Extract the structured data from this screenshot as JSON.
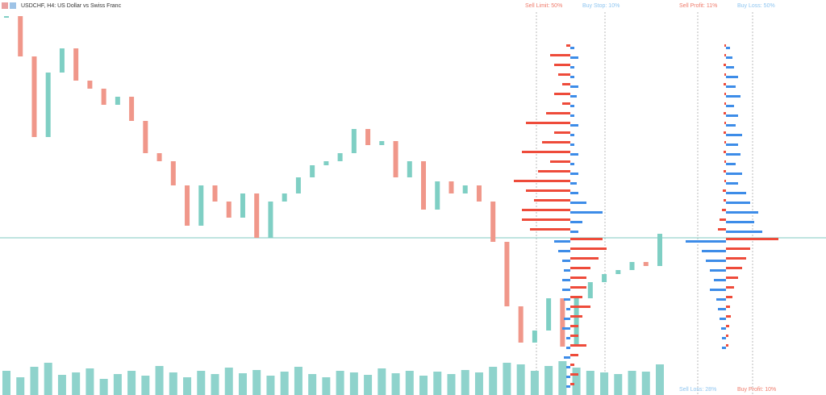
{
  "header": {
    "title": "USDCHF, H4:  US Dollar vs Swiss Franc"
  },
  "labels": {
    "sell_limit": "Sell Limit: 50%",
    "buy_stop": "Buy Stop: 10%",
    "sell_profit": "Sell Profit: 11%",
    "buy_loss": "Buy Loss: 50%",
    "sell_loss": "Sell Loss: 28%",
    "buy_profit": "Buy Profit: 10%"
  },
  "price": {
    "close": [
      470,
      420,
      320,
      400,
      430,
      390,
      380,
      360,
      370,
      340,
      300,
      290,
      260,
      210,
      260,
      240,
      220,
      250,
      195,
      240,
      250,
      270,
      285,
      290,
      300,
      330,
      310,
      315,
      270,
      290,
      230,
      265,
      250,
      260,
      240,
      190,
      110,
      65,
      80,
      120,
      60,
      120,
      140,
      150,
      155,
      165,
      160,
      200
    ]
  },
  "volume": {
    "values": [
      30,
      22,
      35,
      40,
      25,
      28,
      33,
      20,
      26,
      30,
      24,
      36,
      28,
      22,
      30,
      26,
      34,
      27,
      31,
      24,
      29,
      35,
      26,
      22,
      30,
      28,
      25,
      33,
      27,
      30,
      24,
      29,
      26,
      31,
      28,
      35,
      40,
      38,
      30,
      36,
      42,
      34,
      30,
      28,
      26,
      30,
      29,
      38
    ]
  },
  "left_book": {
    "sell": [
      5,
      25,
      20,
      15,
      10,
      20,
      10,
      30,
      55,
      20,
      35,
      60,
      25,
      40,
      70,
      55,
      45,
      60,
      60,
      50,
      40,
      45,
      35,
      25,
      20,
      20,
      15,
      25,
      15,
      10,
      10,
      20,
      10,
      5,
      10,
      5
    ],
    "buy": [
      5,
      10,
      5,
      5,
      10,
      8,
      5,
      5,
      10,
      5,
      5,
      10,
      5,
      10,
      8,
      10,
      20,
      40,
      15,
      10,
      20,
      15,
      10,
      8,
      10,
      10,
      8,
      5,
      8,
      10,
      5,
      5,
      8,
      5,
      5,
      5
    ]
  },
  "right_book": {
    "sell": [
      2,
      2,
      3,
      2,
      3,
      2,
      2,
      3,
      2,
      3,
      2,
      3,
      2,
      3,
      2,
      4,
      3,
      5,
      8,
      10,
      65,
      30,
      25,
      20,
      15,
      10,
      8,
      5,
      6,
      4,
      3,
      3
    ],
    "buy": [
      5,
      8,
      10,
      15,
      12,
      18,
      10,
      15,
      12,
      20,
      15,
      18,
      12,
      20,
      15,
      25,
      30,
      40,
      35,
      45,
      50,
      30,
      25,
      20,
      15,
      20,
      12,
      10,
      8,
      6,
      5,
      5
    ]
  }
}
